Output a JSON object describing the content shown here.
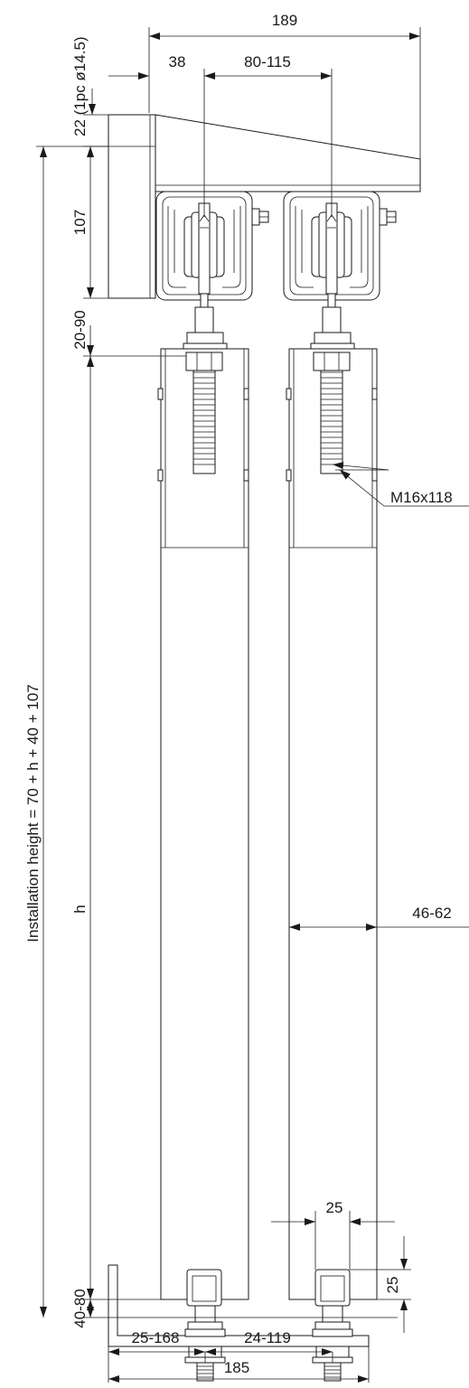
{
  "drawing": {
    "labels": {
      "overall_width_top": "189",
      "offset_38": "38",
      "rail_spacing": "80-115",
      "top_offset": "22 (1pc ø14.5)",
      "track_height": "107",
      "adjust_range": "20-90",
      "thread_callout": "M16x118",
      "installation_height": "Installation height = 70 + h + 40 + 107",
      "door_height": "h",
      "door_thickness": "46-62",
      "guide_width": "25",
      "guide_height": "25",
      "floor_gap": "40-80",
      "bottom_left": "25-168",
      "bottom_mid": "24-119",
      "bottom_overall": "185"
    }
  }
}
